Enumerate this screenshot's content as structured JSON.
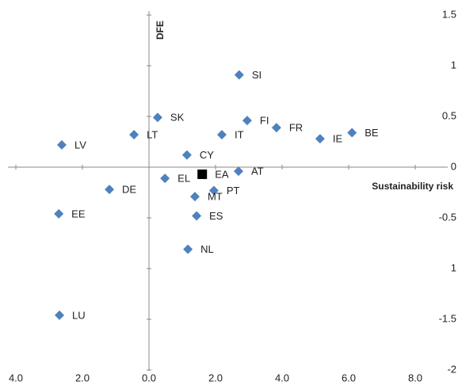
{
  "chart_data": {
    "type": "scatter",
    "x_label": "Sustainability risk",
    "y_label": "DFE",
    "xlim": [
      -4.2,
      8.2
    ],
    "ylim": [
      -2.1,
      1.6
    ],
    "xticks": [
      {
        "value": -4,
        "label": "4.0"
      },
      {
        "value": -2,
        "label": "2.0"
      },
      {
        "value": 0,
        "label": "0.0"
      },
      {
        "value": 2,
        "label": "2.0"
      },
      {
        "value": 4,
        "label": "4.0"
      },
      {
        "value": 6,
        "label": "6.0"
      },
      {
        "value": 8,
        "label": "8.0"
      }
    ],
    "yticks": [
      1.5,
      1,
      0.5,
      0,
      -0.5,
      {
        "value": -1,
        "label": "1"
      },
      -1.5,
      -2
    ],
    "series": [
      {
        "color": "#4f81bd",
        "marker": "diamond",
        "labels": [
          "SI",
          "SK",
          "FI",
          "FR",
          "IE",
          "BE",
          "LV",
          "LT",
          "IT",
          "CY",
          "AT",
          "EL",
          "DE",
          "PT",
          "MT",
          "ES",
          "NL",
          "EE",
          "LU"
        ],
        "x": [
          2.71,
          0.26,
          2.95,
          3.83,
          5.14,
          6.1,
          -2.62,
          -0.45,
          2.19,
          1.14,
          2.69,
          0.48,
          -1.19,
          1.95,
          1.38,
          1.43,
          1.17,
          -2.71,
          -2.69
        ],
        "values": [
          0.91,
          0.49,
          0.46,
          0.39,
          0.28,
          0.34,
          0.22,
          0.32,
          0.32,
          0.12,
          -0.04,
          -0.11,
          -0.22,
          -0.23,
          -0.29,
          -0.48,
          -0.81,
          -0.46,
          -1.46
        ]
      },
      {
        "color": "#000000",
        "marker": "square",
        "labels": [
          "EA"
        ],
        "x": [
          1.6
        ],
        "values": [
          -0.07
        ]
      }
    ]
  }
}
